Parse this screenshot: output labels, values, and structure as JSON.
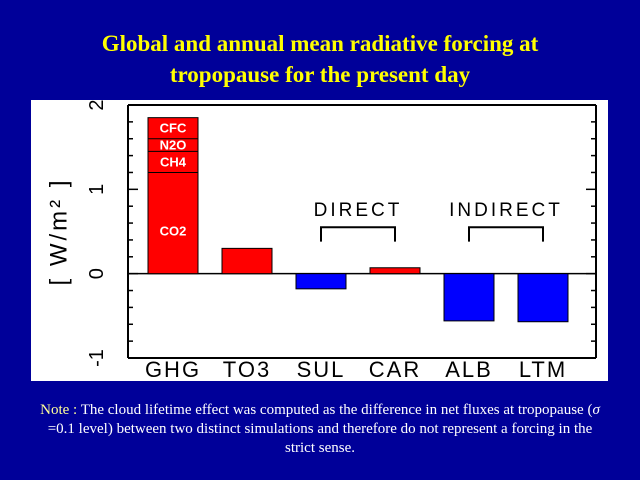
{
  "slide": {
    "title_line1": "Global and annual mean radiative forcing at",
    "title_line2": "tropopause for the present day"
  },
  "note": {
    "lead": "Note :",
    "pre_sigma": " The cloud lifetime effect was computed as the difference in net fluxes at tropopause (",
    "sigma_symbol": "σ",
    "post_sigma": " =0.1 level) between two distinct simulations and therefore do not represent a forcing in the strict sense."
  },
  "chart_data": {
    "type": "bar",
    "ylabel": "[ W/m² ]",
    "ylim": [
      -1,
      2
    ],
    "yticks": [
      -1,
      0,
      1,
      2
    ],
    "ytick_labels": [
      "-1",
      "0",
      "1",
      "2"
    ],
    "categories": [
      "GHG",
      "TO3",
      "SUL",
      "CAR",
      "ALB",
      "LTM"
    ],
    "values": [
      1.85,
      0.3,
      -0.18,
      0.07,
      -0.56,
      -0.57
    ],
    "colors": [
      "#ff0000",
      "#ff0000",
      "#0000ff",
      "#ff0000",
      "#0000ff",
      "#0000ff"
    ],
    "ghg_stack": [
      {
        "label": "CO2",
        "from": 0,
        "to": 1.2
      },
      {
        "label": "CH4",
        "from": 1.2,
        "to": 1.45
      },
      {
        "label": "N2O",
        "from": 1.45,
        "to": 1.6
      },
      {
        "label": "CFC",
        "from": 1.6,
        "to": 1.85
      }
    ],
    "groups": [
      {
        "label": "DIRECT",
        "from": "SUL",
        "to": "CAR"
      },
      {
        "label": "INDIRECT",
        "from": "ALB",
        "to": "LTM"
      }
    ]
  }
}
